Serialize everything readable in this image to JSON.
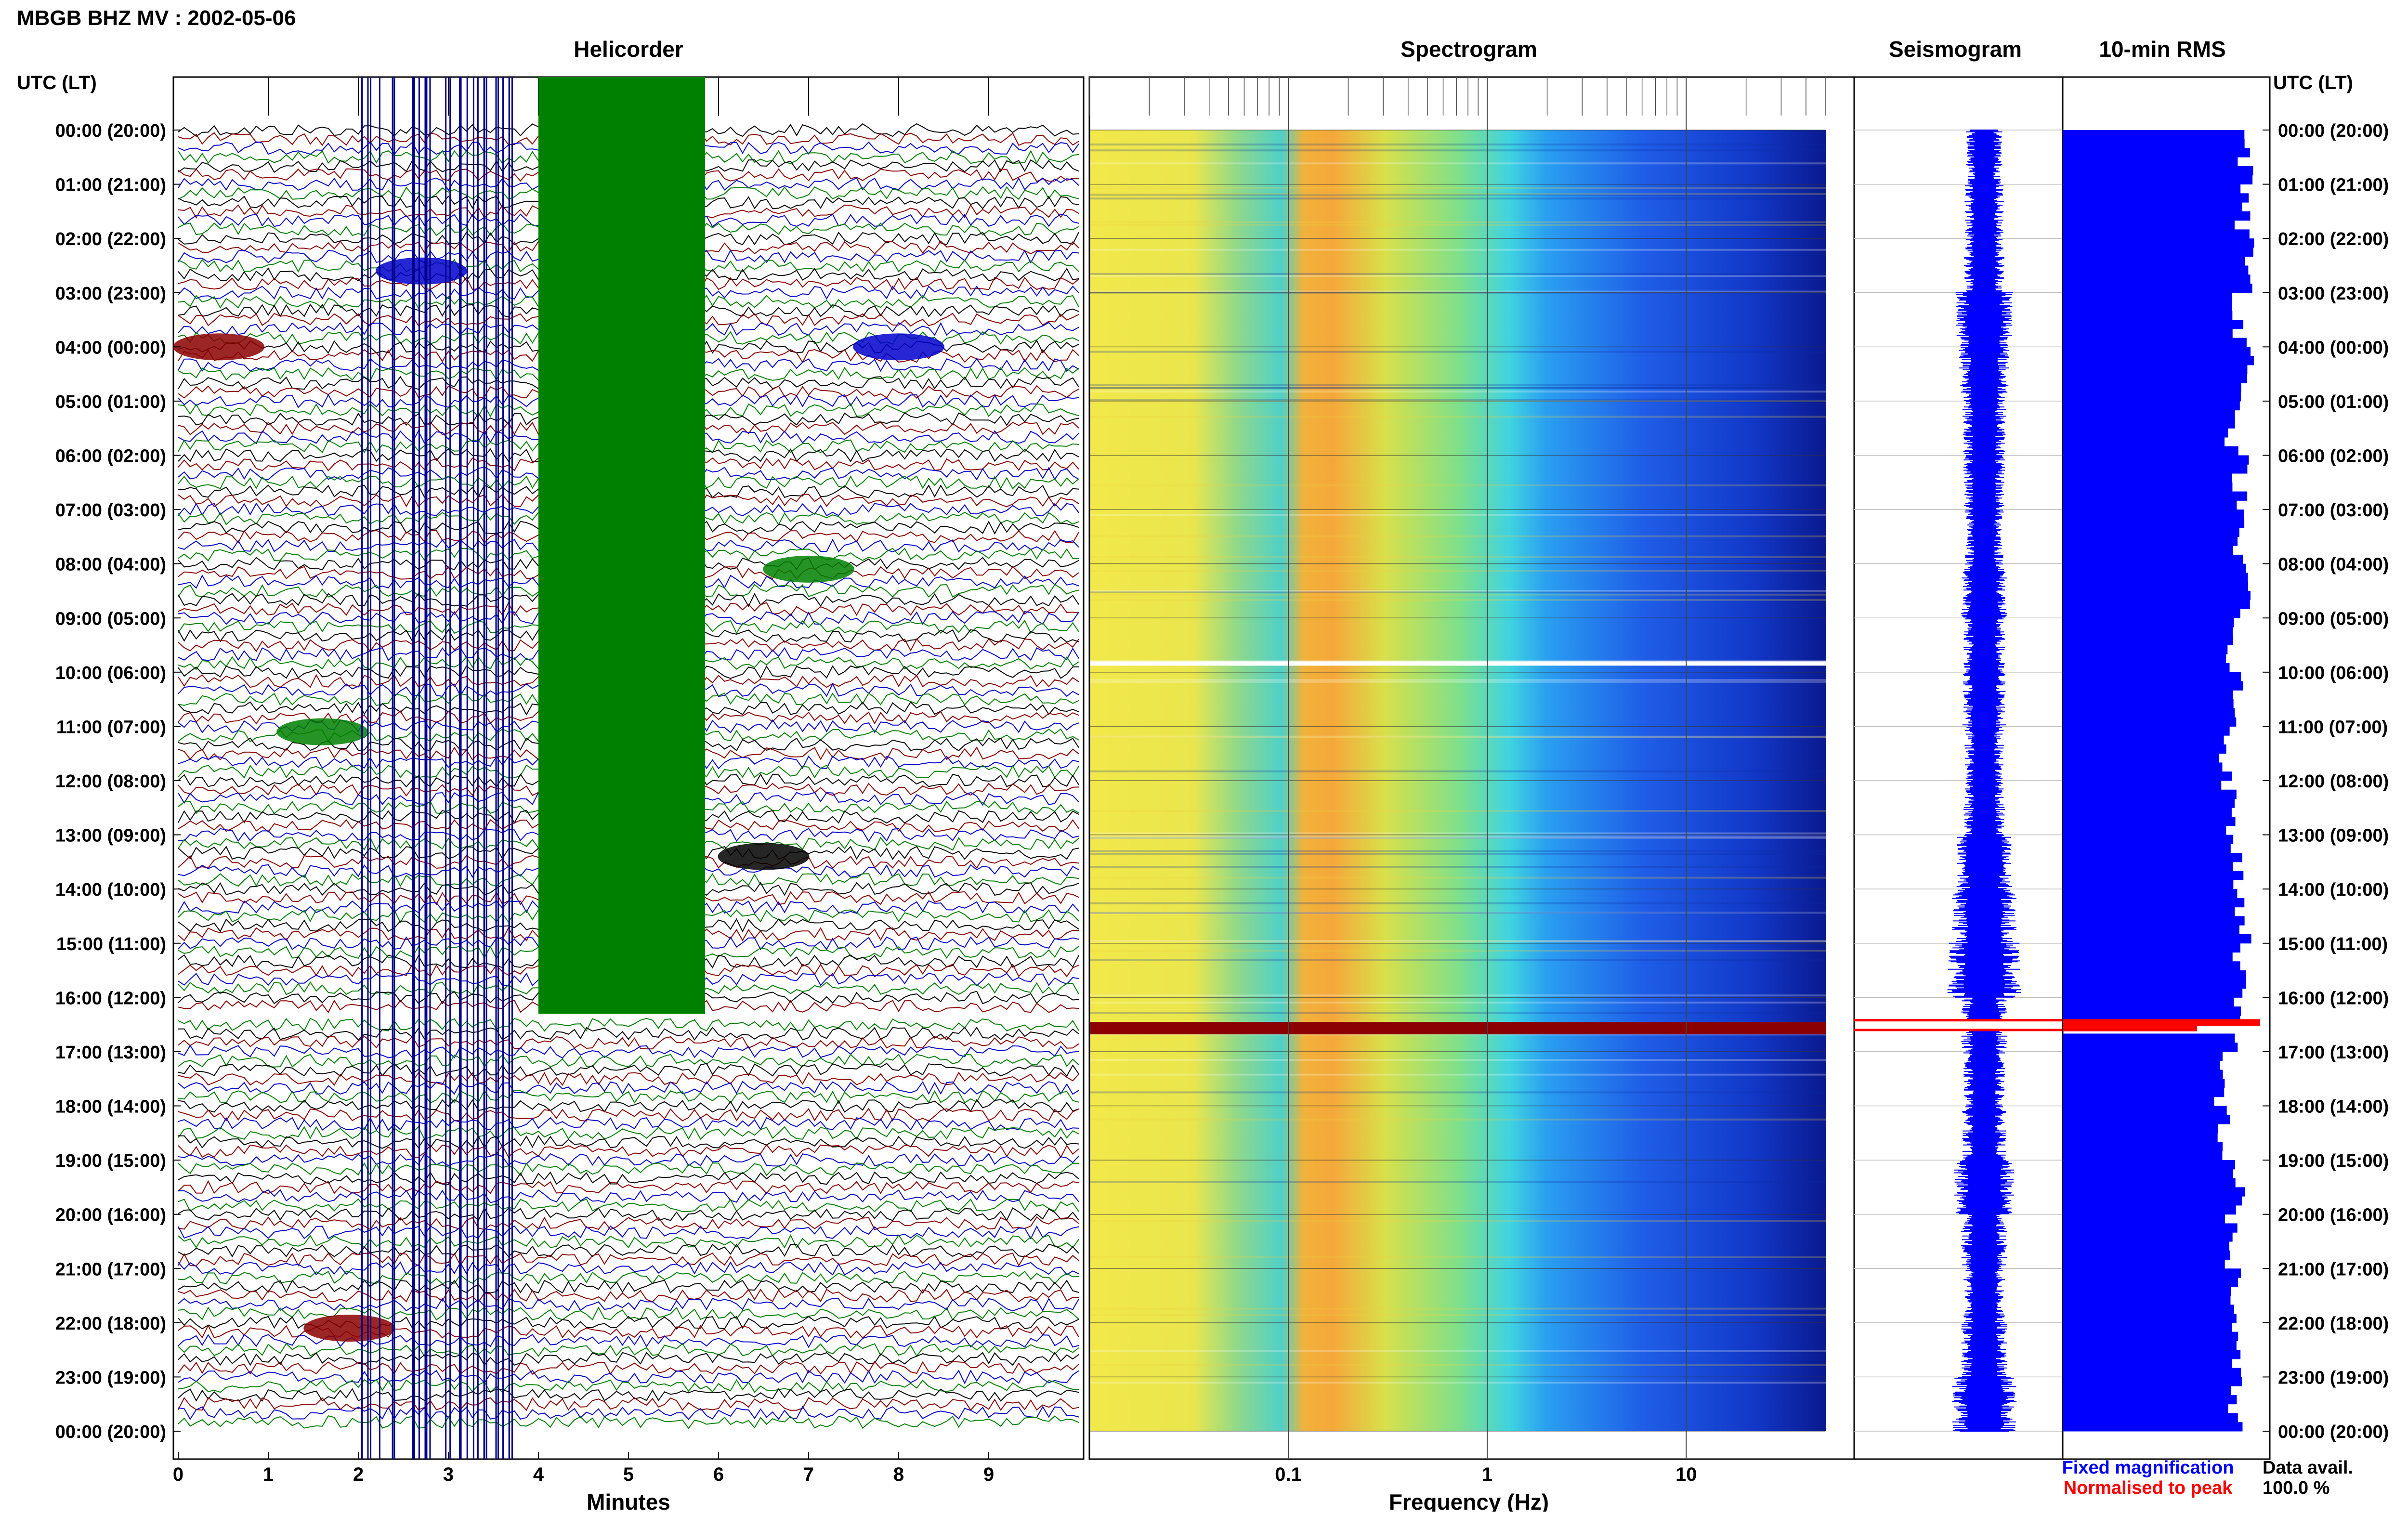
{
  "title": "MBGB BHZ MV : 2002-05-06",
  "time_axis_label": "UTC (LT)",
  "time_ticks": [
    "00:00 (20:00)",
    "01:00 (21:00)",
    "02:00 (22:00)",
    "03:00 (23:00)",
    "04:00 (00:00)",
    "05:00 (01:00)",
    "06:00 (02:00)",
    "07:00 (03:00)",
    "08:00 (04:00)",
    "09:00 (05:00)",
    "10:00 (06:00)",
    "11:00 (07:00)",
    "12:00 (08:00)",
    "13:00 (09:00)",
    "14:00 (10:00)",
    "15:00 (11:00)",
    "16:00 (12:00)",
    "17:00 (13:00)",
    "18:00 (14:00)",
    "19:00 (15:00)",
    "20:00 (16:00)",
    "21:00 (17:00)",
    "22:00 (18:00)",
    "23:00 (19:00)",
    "00:00 (20:00)"
  ],
  "legend": {
    "fixed": "Fixed magnification",
    "normalised": "Normalised to peak",
    "avail_label": "Data avail.",
    "avail_value": "100.0 %"
  },
  "colors": {
    "helicorder_traces": [
      "#000000",
      "#8b0000",
      "#0000cd",
      "#008000"
    ],
    "seismogram": "#0000ff",
    "rms": "#0000ff",
    "normalised": "#ff0000"
  },
  "chart_data": [
    {
      "type": "line",
      "title": "Helicorder",
      "xlabel": "Minutes",
      "x_ticks": [
        "0",
        "1",
        "2",
        "3",
        "4",
        "5",
        "6",
        "7",
        "8",
        "9"
      ],
      "xlim": [
        0,
        10
      ],
      "rows_per_hour": 6,
      "gaps": [
        {
          "hour_start": 16.33,
          "hour_end": 16.5
        }
      ],
      "saturated_block": {
        "x_start_min": 4.0,
        "x_end_min": 5.85,
        "hour_start": 0,
        "hour_end": 16.3,
        "color": "#008000"
      }
    },
    {
      "type": "heatmap",
      "title": "Spectrogram",
      "xlabel": "Frequency (Hz)",
      "x_scale": "log",
      "x_ticks": [
        "0.1",
        "1",
        "10"
      ],
      "xlim": [
        0.01,
        50
      ],
      "ylim_hours": [
        0,
        24
      ],
      "gaps": [
        {
          "hour_start": 9.8,
          "hour_end": 9.85
        }
      ],
      "peak_band": {
        "hour_start": 16.45,
        "hour_end": 16.55
      }
    },
    {
      "type": "line",
      "title": "Seismogram",
      "series": [
        {
          "values": [
            0.8,
            0.85,
            0.9,
            1.3,
            1.1,
            0.95,
            0.9,
            0.85,
            1.0,
            0.9,
            0.95,
            0.85,
            0.9,
            1.2,
            1.4,
            1.6,
            1.0,
            0.9,
            0.95,
            1.3,
            1.0,
            0.9,
            1.0,
            1.4
          ]
        }
      ]
    },
    {
      "type": "bar",
      "title": "10-min RMS",
      "orientation": "horizontal",
      "x": [
        "00:00",
        "01:00",
        "02:00",
        "03:00",
        "04:00",
        "05:00",
        "06:00",
        "07:00",
        "08:00",
        "09:00",
        "10:00",
        "11:00",
        "12:00",
        "13:00",
        "14:00",
        "15:00",
        "16:00",
        "17:00",
        "18:00",
        "19:00",
        "20:00",
        "21:00",
        "22:00",
        "23:00"
      ],
      "values": [
        0.95,
        0.93,
        0.96,
        0.92,
        0.97,
        0.88,
        0.92,
        0.9,
        0.95,
        0.86,
        0.9,
        0.85,
        0.86,
        0.9,
        0.93,
        0.92,
        0.88,
        0.82,
        0.83,
        0.9,
        0.87,
        0.89,
        0.88,
        0.9
      ]
    }
  ]
}
